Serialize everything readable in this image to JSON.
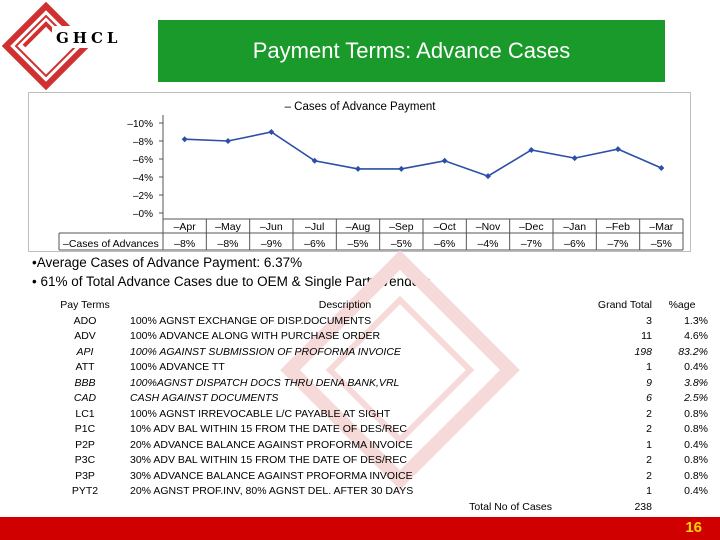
{
  "logo": {
    "text": "GHCL"
  },
  "title": "Payment Terms: Advance Cases",
  "colors": {
    "title_bg": "#1a9a2a",
    "footer_bg": "#d00000",
    "page_num": "#ffd400",
    "line": "#2b4ea8",
    "logo": "#d03030"
  },
  "chart_data": {
    "type": "line",
    "title": "– Cases of Advance Payment",
    "categories": [
      "–Apr",
      "–May",
      "–Jun",
      "–Jul",
      "–Aug",
      "–Sep",
      "–Oct",
      "–Nov",
      "–Dec",
      "–Jan",
      "–Feb",
      "–Mar"
    ],
    "series": [
      {
        "name": "–Cases of Advances",
        "values": [
          8.2,
          8.0,
          9.0,
          5.8,
          4.9,
          4.9,
          5.8,
          4.1,
          7.0,
          6.1,
          7.1,
          5.0
        ],
        "labels": [
          "–8%",
          "–8%",
          "–9%",
          "–6%",
          "–5%",
          "–5%",
          "–6%",
          "–4%",
          "–7%",
          "–6%",
          "–7%",
          "–5%"
        ]
      }
    ],
    "yticks": [
      "–10%",
      "–8%",
      "–6%",
      "–4%",
      "–2%",
      "–0%"
    ],
    "ylim": [
      0,
      10
    ],
    "grid": false,
    "data_table": true
  },
  "bullets": [
    "•Average Cases of Advance Payment: 6.37%",
    "• 61% of Total Advance Cases due to OEM & Single Party Vendors"
  ],
  "table": {
    "headers": {
      "code": "Pay Terms",
      "desc": "Description",
      "total": "Grand Total",
      "pct": "%age"
    },
    "rows": [
      {
        "code": "ADO",
        "desc": "100% AGNST EXCHANGE OF DISP.DOCUMENTS",
        "total": "3",
        "pct": "1.3%",
        "italic": false
      },
      {
        "code": "ADV",
        "desc": "100% ADVANCE ALONG WITH PURCHASE ORDER",
        "total": "11",
        "pct": "4.6%",
        "italic": false
      },
      {
        "code": "API",
        "desc": "100% AGAINST SUBMISSION OF PROFORMA INVOICE",
        "total": "198",
        "pct": "83.2%",
        "italic": true
      },
      {
        "code": "ATT",
        "desc": "100% ADVANCE TT",
        "total": "1",
        "pct": "0.4%",
        "italic": false
      },
      {
        "code": "BBB",
        "desc": "100%AGNST DISPATCH DOCS THRU DENA BANK,VRL",
        "total": "9",
        "pct": "3.8%",
        "italic": true
      },
      {
        "code": "CAD",
        "desc": "CASH AGAINST DOCUMENTS",
        "total": "6",
        "pct": "2.5%",
        "italic": true
      },
      {
        "code": "LC1",
        "desc": "100% AGNST IRREVOCABLE L/C PAYABLE AT SIGHT",
        "total": "2",
        "pct": "0.8%",
        "italic": false
      },
      {
        "code": "P1C",
        "desc": "10% ADV BAL WITHIN 15 FROM THE DATE OF DES/REC",
        "total": "2",
        "pct": "0.8%",
        "italic": false
      },
      {
        "code": "P2P",
        "desc": "20% ADVANCE BALANCE AGAINST  PROFORMA INVOICE",
        "total": "1",
        "pct": "0.4%",
        "italic": false
      },
      {
        "code": "P3C",
        "desc": "30% ADV BAL WITHIN 15 FROM THE DATE OF DES/REC",
        "total": "2",
        "pct": "0.8%",
        "italic": false
      },
      {
        "code": "P3P",
        "desc": "30% ADVANCE BALANCE AGAINST  PROFORMA INVOICE",
        "total": "2",
        "pct": "0.8%",
        "italic": false
      },
      {
        "code": "PYT2",
        "desc": "20% AGNST PROF.INV, 80% AGNST DEL. AFTER 30 DAYS",
        "total": "1",
        "pct": "0.4%",
        "italic": false
      }
    ],
    "total_label": "Total  No of Cases",
    "total_value": "238"
  },
  "page_number": "16"
}
